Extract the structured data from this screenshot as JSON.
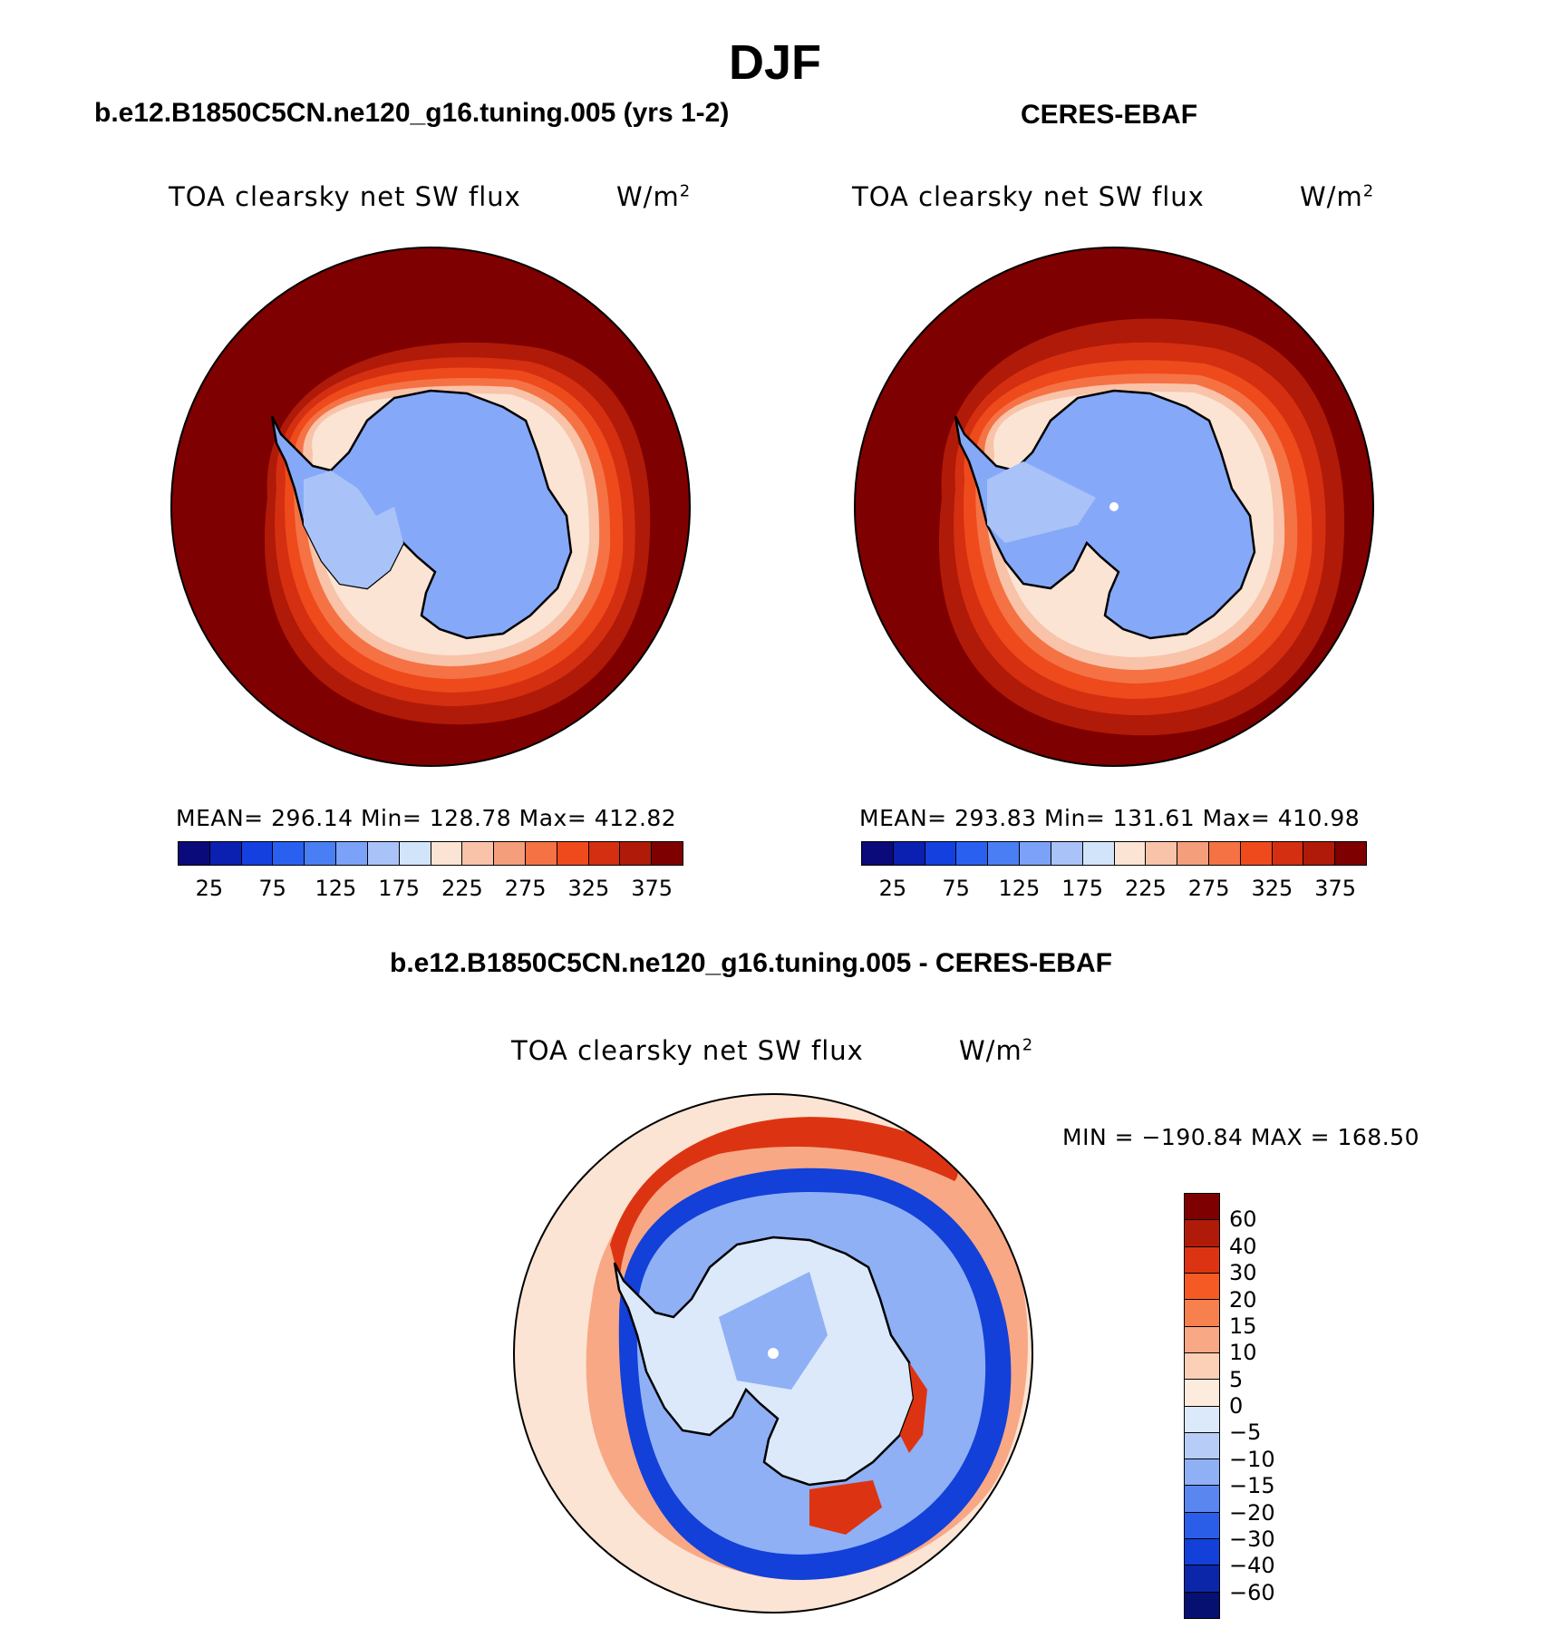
{
  "title": "DJF",
  "panels": [
    {
      "subtitle": "b.e12.B1850C5CN.ne120_g16.tuning.005 (yrs 1-2)",
      "variable": "TOA clearsky net SW flux",
      "units_base": "W/m",
      "units_exp": "2",
      "stats": "MEAN= 296.14   Min= 128.78   Max= 412.82"
    },
    {
      "subtitle": "CERES-EBAF",
      "variable": "TOA clearsky net SW flux",
      "units_base": "W/m",
      "units_exp": "2",
      "stats": "MEAN= 293.83   Min= 131.61   Max= 410.98"
    },
    {
      "subtitle": "b.e12.B1850C5CN.ne120_g16.tuning.005 - CERES-EBAF",
      "variable": "TOA clearsky net SW flux",
      "units_base": "W/m",
      "units_exp": "2",
      "stats": "MIN = −190.84 MAX = 168.50"
    }
  ],
  "colorbar_top": {
    "colors": [
      "#0a0a7a",
      "#0b1fb0",
      "#1440e0",
      "#2a60f0",
      "#4a7ef5",
      "#7ba2f8",
      "#a9c3f8",
      "#d2e4fa",
      "#fbe4d4",
      "#f8c3a8",
      "#f59e7c",
      "#f57245",
      "#ee4a1c",
      "#d42f10",
      "#b01a08",
      "#7f0000"
    ],
    "ticks": [
      "25",
      "75",
      "125",
      "175",
      "225",
      "275",
      "325",
      "375"
    ]
  },
  "colorbar_diff": {
    "colors": [
      "#7f0000",
      "#b01a08",
      "#dc3412",
      "#f55a25",
      "#f6814e",
      "#f8a885",
      "#fbd0b6",
      "#fdebdd",
      "#dce9fb",
      "#b7cdf7",
      "#8fb0f5",
      "#5a86f0",
      "#2a5ee8",
      "#1240d8",
      "#0b26a8",
      "#061070"
    ],
    "ticks": [
      "60",
      "40",
      "30",
      "20",
      "15",
      "10",
      "5",
      "0",
      "−5",
      "−10",
      "−15",
      "−20",
      "−30",
      "−40",
      "−60"
    ]
  },
  "colors": {
    "land_ice": "#86a8f8",
    "land_ice_light": "#a9c3f8",
    "ocean_far": "#7f0000",
    "diff_bg": "#fbe4d4"
  }
}
